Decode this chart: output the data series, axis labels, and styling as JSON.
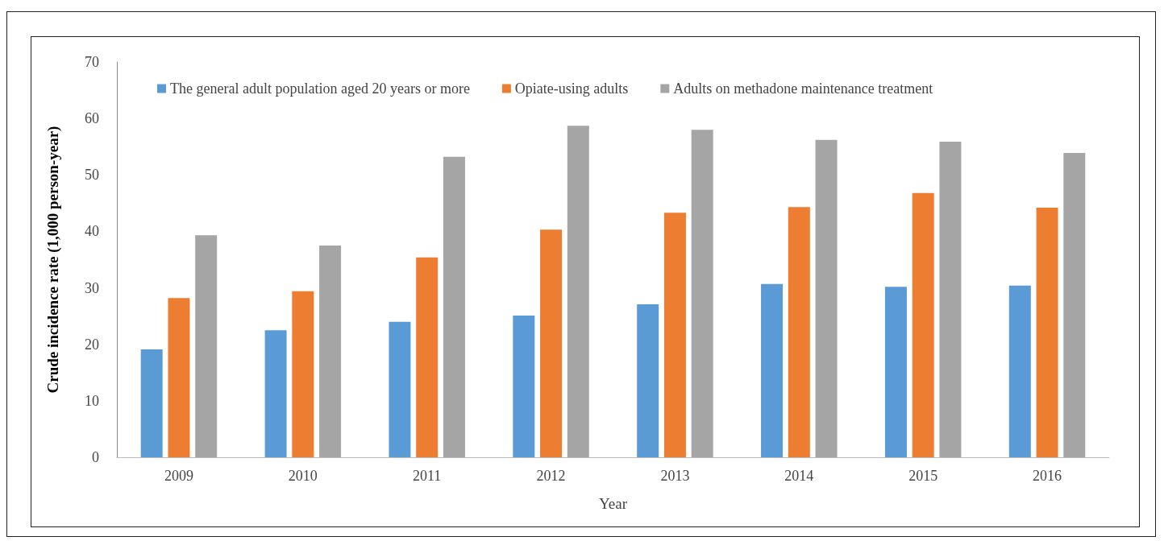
{
  "chart_data": {
    "type": "bar",
    "xlabel": "Year",
    "ylabel": "Crude incidence rate (1,000 person-year)",
    "categories": [
      "2009",
      "2010",
      "2011",
      "2012",
      "2013",
      "2014",
      "2015",
      "2016"
    ],
    "series": [
      {
        "name": "The general adult population aged 20 years or more",
        "color": "#5b9bd5",
        "values": [
          19.1,
          22.5,
          24.0,
          25.1,
          27.1,
          30.7,
          30.2,
          30.4
        ]
      },
      {
        "name": "Opiate-using adults",
        "color": "#ed7d31",
        "values": [
          28.2,
          29.4,
          35.4,
          40.3,
          43.3,
          44.3,
          46.8,
          44.2
        ]
      },
      {
        "name": "Adults on methadone maintenance treatment",
        "color": "#a5a5a5",
        "values": [
          39.3,
          37.5,
          53.2,
          58.7,
          58.0,
          56.2,
          55.9,
          53.9
        ]
      }
    ],
    "ylim": [
      0,
      70
    ],
    "yticks": [
      0,
      10,
      20,
      30,
      40,
      50,
      60,
      70
    ],
    "grid": false,
    "legend": "top"
  }
}
